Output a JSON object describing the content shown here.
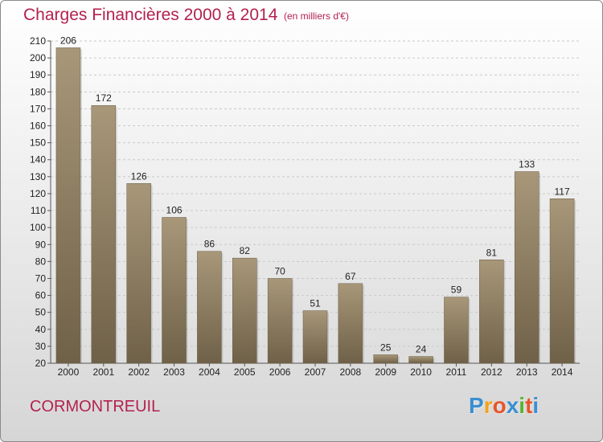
{
  "header": {
    "title": "Charges Financières 2000 à 2014",
    "subtitle": "(en milliers d'€)"
  },
  "footer": {
    "commune": "CORMONTREUIL",
    "logo": [
      "P",
      "r",
      "o",
      "x",
      "i",
      "t",
      "i"
    ],
    "logo_colors": [
      "#3a8fd1",
      "#f2a31b",
      "#e8542b",
      "#3a8fd1",
      "#58b431",
      "#e8542b",
      "#3a8fd1"
    ]
  },
  "chart_data": {
    "type": "bar",
    "categories": [
      "2000",
      "2001",
      "2002",
      "2003",
      "2004",
      "2005",
      "2006",
      "2007",
      "2008",
      "2009",
      "2010",
      "2011",
      "2012",
      "2013",
      "2014"
    ],
    "values": [
      206,
      172,
      126,
      106,
      86,
      82,
      70,
      51,
      67,
      25,
      24,
      59,
      81,
      133,
      117
    ],
    "title": "Charges Financières 2000 à 2014",
    "ylim": [
      20,
      210
    ],
    "yticks": [
      20,
      30,
      40,
      50,
      60,
      70,
      80,
      90,
      100,
      110,
      120,
      130,
      140,
      150,
      160,
      170,
      180,
      190,
      200,
      210
    ],
    "grid": true,
    "bar_color": "#8f7f63"
  }
}
